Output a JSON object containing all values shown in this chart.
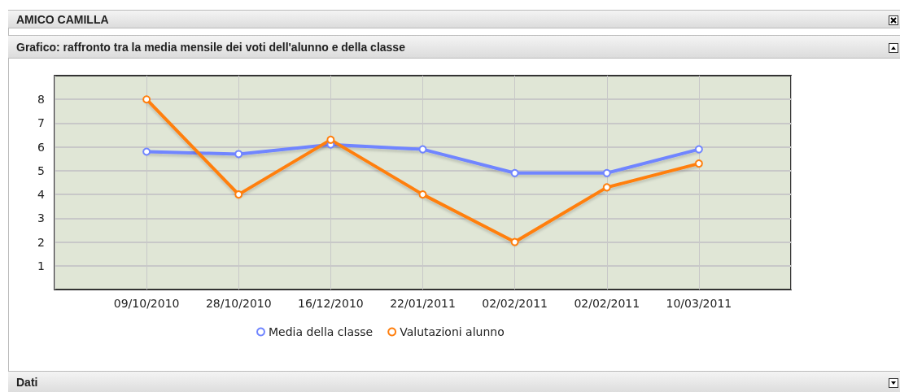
{
  "chart_data": {
    "type": "line",
    "title": "AMICO CAMILLA",
    "subtitle": "Grafico: raffronto tra la media mensile dei voti dell'alunno e della classe",
    "annotations": [
      "Dati"
    ],
    "categories": [
      "09/10/2010",
      "28/10/2010",
      "16/12/2010",
      "22/01/2011",
      "02/02/2011",
      "02/02/2011",
      "10/03/2011"
    ],
    "series": [
      {
        "name": "Media della classe",
        "color": "#7085ff",
        "values": [
          5.8,
          5.7,
          6.1,
          5.9,
          4.9,
          4.9,
          5.9
        ]
      },
      {
        "name": "Valutazioni alunno",
        "color": "#ff7f0e",
        "values": [
          8,
          4,
          6.3,
          4,
          2,
          4.3,
          5.3
        ]
      }
    ],
    "ylim": [
      0,
      9
    ],
    "yticks": [
      1,
      2,
      3,
      4,
      5,
      6,
      7,
      8
    ],
    "grid": true,
    "legend": "bottom",
    "marker": "circle",
    "line_style": "solid"
  }
}
